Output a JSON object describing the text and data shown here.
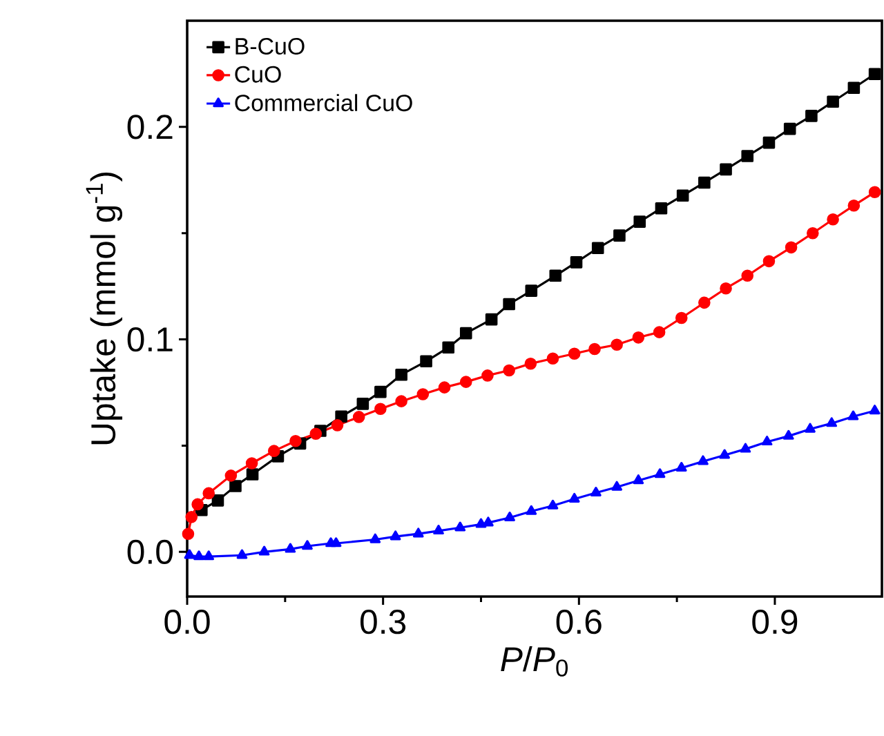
{
  "chart_data": {
    "type": "line",
    "xlabel": "*P*/*P*$_{0}$",
    "ylabel": "Uptake (mmol g$^{-1}$)",
    "xlim": [
      0,
      1.064
    ],
    "ylim": [
      -0.021,
      0.25
    ],
    "xticks": [
      {
        "value": 0,
        "label": "0.0"
      },
      {
        "value": 0.3,
        "label": "0.3"
      },
      {
        "value": 0.6,
        "label": "0.6"
      },
      {
        "value": 0.9,
        "label": "0.9"
      }
    ],
    "yticks": [
      {
        "value": 0,
        "label": "0.0"
      },
      {
        "value": 0.1,
        "label": "0.1"
      },
      {
        "value": 0.2,
        "label": "0.2"
      }
    ],
    "grid": false,
    "legend": "top left",
    "line_style": "solid",
    "series": [
      {
        "name": "B-CuO",
        "color": "#000000",
        "marker": "square",
        "x": [
          0.022,
          0.047,
          0.074,
          0.1,
          0.139,
          0.173,
          0.204,
          0.236,
          0.269,
          0.296,
          0.328,
          0.366,
          0.4,
          0.427,
          0.466,
          0.493,
          0.527,
          0.564,
          0.596,
          0.629,
          0.662,
          0.693,
          0.726,
          0.759,
          0.792,
          0.825,
          0.858,
          0.891,
          0.923,
          0.956,
          0.989,
          1.021,
          1.053
        ],
        "values": [
          0.0197,
          0.0242,
          0.031,
          0.0365,
          0.045,
          0.051,
          0.057,
          0.0637,
          0.0697,
          0.0753,
          0.0834,
          0.0897,
          0.0962,
          0.1029,
          0.1094,
          0.1166,
          0.1229,
          0.13,
          0.1363,
          0.143,
          0.1489,
          0.1554,
          0.1617,
          0.1677,
          0.1738,
          0.18,
          0.1863,
          0.1926,
          0.1991,
          0.2052,
          0.2119,
          0.2184,
          0.2249
        ]
      },
      {
        "name": "CuO",
        "color": "#ff0000",
        "marker": "circle",
        "x": [
          0.0015,
          0.0066,
          0.016,
          0.033,
          0.067,
          0.099,
          0.133,
          0.166,
          0.197,
          0.23,
          0.263,
          0.296,
          0.328,
          0.361,
          0.394,
          0.427,
          0.46,
          0.493,
          0.526,
          0.56,
          0.593,
          0.624,
          0.658,
          0.691,
          0.723,
          0.757,
          0.792,
          0.825,
          0.858,
          0.891,
          0.925,
          0.958,
          0.989,
          1.021,
          1.053
        ],
        "values": [
          0.0085,
          0.0164,
          0.0224,
          0.0276,
          0.0359,
          0.0417,
          0.0475,
          0.0522,
          0.0556,
          0.0596,
          0.0635,
          0.0673,
          0.0709,
          0.0742,
          0.0774,
          0.08,
          0.083,
          0.0854,
          0.0886,
          0.091,
          0.0933,
          0.0955,
          0.0975,
          0.1009,
          0.1034,
          0.1101,
          0.1173,
          0.124,
          0.13,
          0.1368,
          0.1433,
          0.15,
          0.1565,
          0.163,
          0.1693
        ]
      },
      {
        "name": "Commercial CuO",
        "color": "#0000ff",
        "marker": "triangle",
        "x": [
          0.0036,
          0.018,
          0.033,
          0.084,
          0.118,
          0.158,
          0.184,
          0.22,
          0.228,
          0.288,
          0.319,
          0.354,
          0.385,
          0.418,
          0.45,
          0.461,
          0.494,
          0.527,
          0.56,
          0.593,
          0.626,
          0.658,
          0.691,
          0.724,
          0.757,
          0.79,
          0.823,
          0.855,
          0.888,
          0.921,
          0.954,
          0.987,
          1.02,
          1.053
        ],
        "values": [
          -0.0016,
          -0.0022,
          -0.0022,
          -0.0016,
          0.0,
          0.0013,
          0.0027,
          0.004,
          0.004,
          0.0058,
          0.0072,
          0.0085,
          0.0099,
          0.0114,
          0.013,
          0.0137,
          0.0161,
          0.0191,
          0.0217,
          0.0249,
          0.0278,
          0.0305,
          0.0336,
          0.0365,
          0.0395,
          0.0426,
          0.0455,
          0.0484,
          0.0518,
          0.0545,
          0.0578,
          0.0605,
          0.0637,
          0.0664
        ]
      }
    ]
  }
}
